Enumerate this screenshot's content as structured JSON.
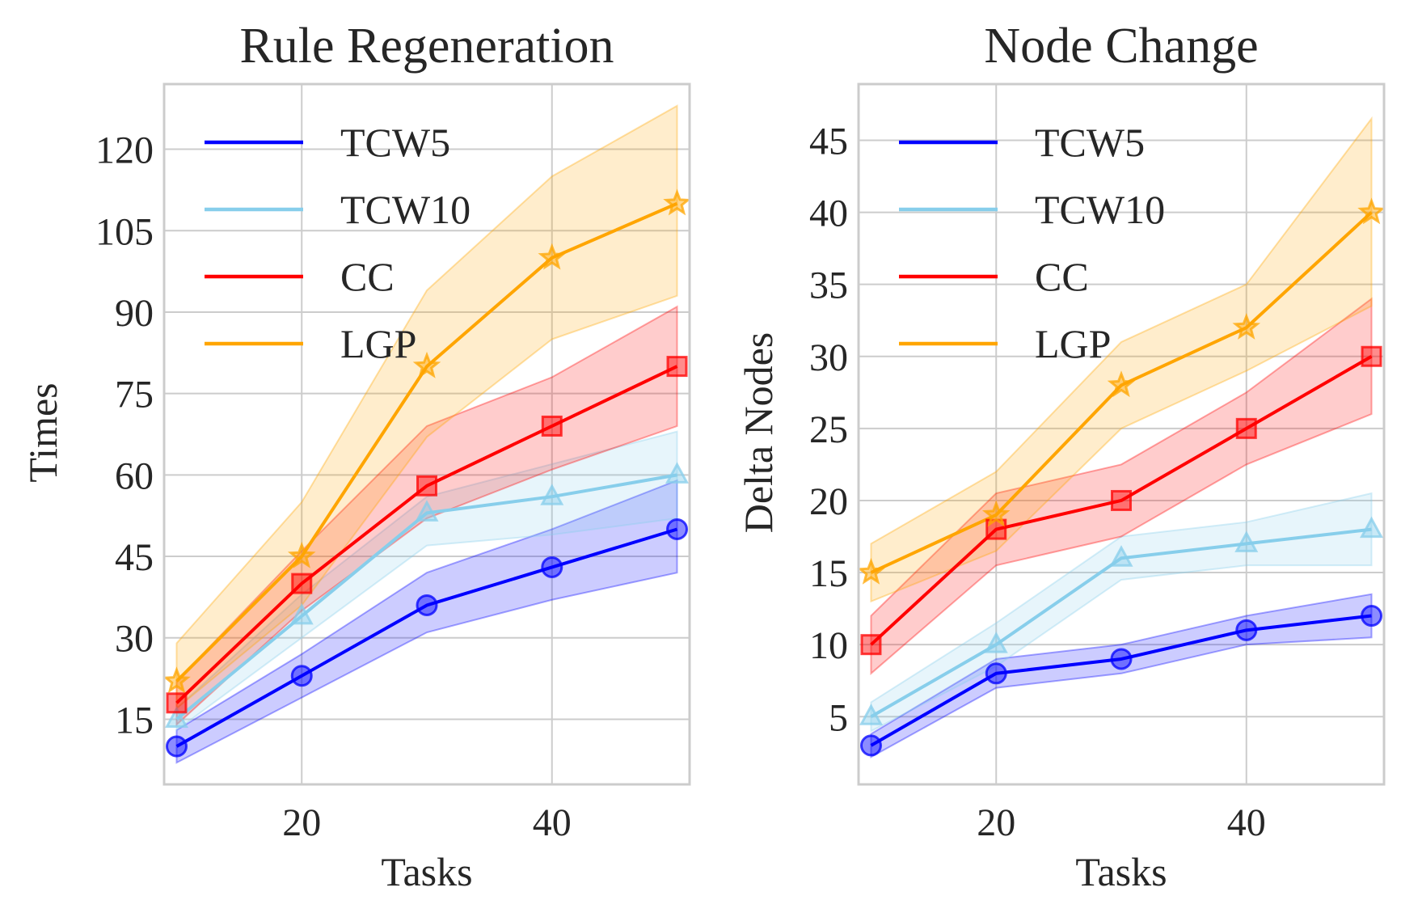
{
  "chart_data": [
    {
      "type": "line",
      "title": "Rule Regeneration",
      "xlabel": "Tasks",
      "ylabel": "Times",
      "x": [
        10,
        20,
        30,
        40,
        50
      ],
      "xlim": [
        9,
        51
      ],
      "ylim": [
        3,
        132
      ],
      "xticks": [
        20,
        40
      ],
      "yticks": [
        15,
        30,
        45,
        60,
        75,
        90,
        105,
        120
      ],
      "grid": true,
      "legend": "top-left",
      "series": [
        {
          "name": "TCW5",
          "color": "#0000ff",
          "marker": "circle",
          "values": [
            10,
            23,
            36,
            43,
            50
          ],
          "lower": [
            7,
            19,
            31,
            37,
            42
          ],
          "upper": [
            13,
            27,
            42,
            50,
            59
          ]
        },
        {
          "name": "TCW10",
          "color": "#87ceeb",
          "marker": "triangle",
          "values": [
            15,
            34,
            53,
            56,
            60
          ],
          "lower": [
            13,
            30,
            47,
            49,
            52
          ],
          "upper": [
            17,
            38,
            56,
            62,
            68
          ]
        },
        {
          "name": "CC",
          "color": "#ff0000",
          "marker": "square",
          "values": [
            18,
            40,
            58,
            69,
            80
          ],
          "lower": [
            14,
            35,
            52,
            61,
            69
          ],
          "upper": [
            22,
            46,
            69,
            78,
            91
          ]
        },
        {
          "name": "LGP",
          "color": "#ffa500",
          "marker": "star",
          "values": [
            22,
            45,
            80,
            100,
            110
          ],
          "lower": [
            17,
            36,
            67,
            85,
            93
          ],
          "upper": [
            29,
            55,
            94,
            115,
            128
          ]
        }
      ]
    },
    {
      "type": "line",
      "title": "Node Change",
      "xlabel": "Tasks",
      "ylabel": "Delta Nodes",
      "x": [
        10,
        20,
        30,
        40,
        50
      ],
      "xlim": [
        9,
        51
      ],
      "ylim": [
        0.3,
        48.9
      ],
      "xticks": [
        20,
        40
      ],
      "yticks": [
        5,
        10,
        15,
        20,
        25,
        30,
        35,
        40,
        45
      ],
      "grid": true,
      "legend": "top-left",
      "series": [
        {
          "name": "TCW5",
          "color": "#0000ff",
          "marker": "circle",
          "values": [
            3,
            8,
            9,
            11,
            12
          ],
          "lower": [
            2.2,
            7,
            8,
            10,
            10.5
          ],
          "upper": [
            3.8,
            9,
            10,
            12,
            13.5
          ]
        },
        {
          "name": "TCW10",
          "color": "#87ceeb",
          "marker": "triangle",
          "values": [
            5,
            10,
            16,
            17,
            18
          ],
          "lower": [
            4,
            8.5,
            14.5,
            15.5,
            15.5
          ],
          "upper": [
            6,
            11.5,
            17.5,
            18.5,
            20.5
          ]
        },
        {
          "name": "CC",
          "color": "#ff0000",
          "marker": "square",
          "values": [
            10,
            18,
            20,
            25,
            30
          ],
          "lower": [
            8,
            15.5,
            17.5,
            22.5,
            26
          ],
          "upper": [
            12,
            20.5,
            22.5,
            27.5,
            34
          ]
        },
        {
          "name": "LGP",
          "color": "#ffa500",
          "marker": "star",
          "values": [
            15,
            19,
            28,
            32,
            40
          ],
          "lower": [
            13,
            16.5,
            25,
            29,
            33.5
          ],
          "upper": [
            17,
            22,
            31,
            35,
            46.5
          ]
        }
      ]
    }
  ]
}
